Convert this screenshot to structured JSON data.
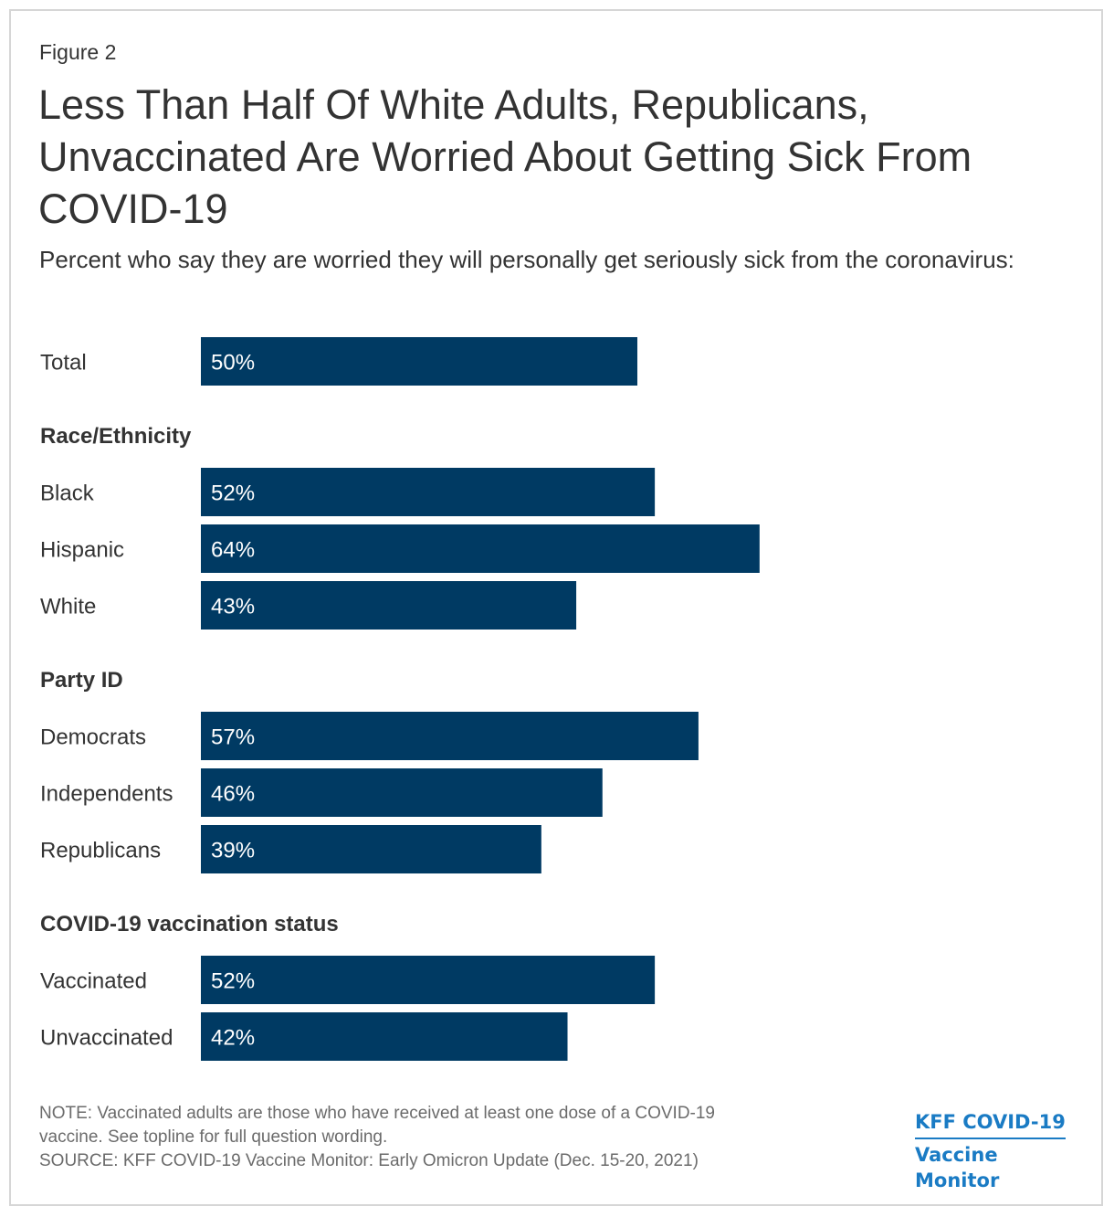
{
  "figure_label": "Figure 2",
  "title": "Less Than Half Of White Adults, Republicans, Unvaccinated Are Worried About Getting Sick From COVID-19",
  "subtitle": "Percent who say they are worried they will personally get seriously sick from the coronavirus:",
  "colors": {
    "bar": "#003a63",
    "bar_label": "#ffffff",
    "text": "#333333",
    "note": "#6b6b6b",
    "brand": "#1a7bc4"
  },
  "chart_data": {
    "type": "bar",
    "orientation": "horizontal",
    "unit": "%",
    "xlim": [
      0,
      100
    ],
    "groups": [
      {
        "heading": "",
        "categories": [
          "Total"
        ],
        "values": [
          50
        ]
      },
      {
        "heading": "Race/Ethnicity",
        "categories": [
          "Black",
          "Hispanic",
          "White"
        ],
        "values": [
          52,
          64,
          43
        ]
      },
      {
        "heading": "Party ID",
        "categories": [
          "Democrats",
          "Independents",
          "Republicans"
        ],
        "values": [
          57,
          46,
          39
        ]
      },
      {
        "heading": "COVID-19 vaccination status",
        "categories": [
          "Vaccinated",
          "Unvaccinated"
        ],
        "values": [
          52,
          42
        ]
      }
    ],
    "value_labels": {
      "Total": "50%",
      "Black": "52%",
      "Hispanic": "64%",
      "White": "43%",
      "Democrats": "57%",
      "Independents": "46%",
      "Republicans": "39%",
      "Vaccinated": "52%",
      "Unvaccinated": "42%"
    }
  },
  "notes": {
    "note_line1": "NOTE: Vaccinated adults are those who have received at least one dose of a COVID-19",
    "note_line2": "vaccine. See topline for full question wording.",
    "source": "SOURCE: KFF COVID-19 Vaccine Monitor: Early Omicron Update (Dec. 15-20, 2021)"
  },
  "logo": {
    "line1": "KFF COVID-19",
    "line2": "Vaccine Monitor"
  }
}
